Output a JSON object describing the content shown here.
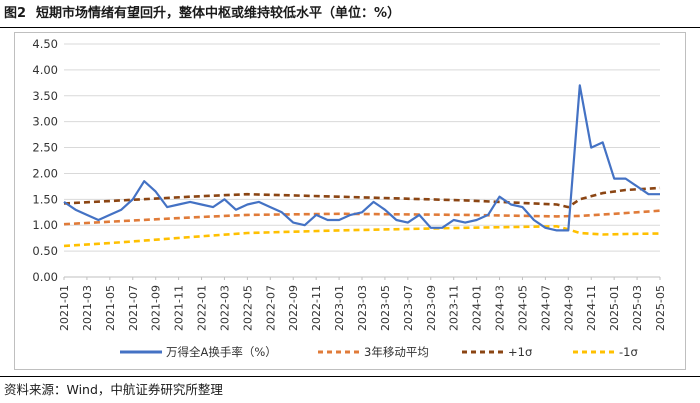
{
  "figure": {
    "number": "图2",
    "title": "短期市场情绪有望回升，整体中枢或维持较低水平（单位：%）"
  },
  "source": "资料来源：Wind，中航证券研究所整理",
  "colors": {
    "turnover": "#4472C4",
    "ma3y": "#E07B39",
    "plus1": "#8B4513",
    "minus1": "#FFC000"
  },
  "chart_data": {
    "type": "line",
    "x_start": "2021-01",
    "x_end": "2025-05",
    "ylim": [
      0.0,
      4.5
    ],
    "yticks": [
      "0.00",
      "0.50",
      "1.00",
      "1.50",
      "2.00",
      "2.50",
      "3.00",
      "3.50",
      "4.00",
      "4.50"
    ],
    "xticks": [
      "2021-01",
      "2021-03",
      "2021-05",
      "2021-07",
      "2021-09",
      "2021-11",
      "2022-01",
      "2022-03",
      "2022-05",
      "2022-07",
      "2022-09",
      "2022-11",
      "2023-01",
      "2023-03",
      "2023-05",
      "2023-07",
      "2023-09",
      "2023-11",
      "2024-01",
      "2024-03",
      "2024-05",
      "2024-07",
      "2024-09",
      "2024-11",
      "2025-01",
      "2025-03",
      "2025-05"
    ],
    "grid": true,
    "legend_position": "bottom",
    "series": [
      {
        "name": "万得全A换手率（%）",
        "style": "solid",
        "x": [
          "2021-01",
          "2021-02",
          "2021-03",
          "2021-04",
          "2021-05",
          "2021-06",
          "2021-07",
          "2021-08",
          "2021-09",
          "2021-10",
          "2021-11",
          "2021-12",
          "2022-01",
          "2022-02",
          "2022-03",
          "2022-04",
          "2022-05",
          "2022-06",
          "2022-07",
          "2022-08",
          "2022-09",
          "2022-10",
          "2022-11",
          "2022-12",
          "2023-01",
          "2023-02",
          "2023-03",
          "2023-04",
          "2023-05",
          "2023-06",
          "2023-07",
          "2023-08",
          "2023-09",
          "2023-10",
          "2023-11",
          "2023-12",
          "2024-01",
          "2024-02",
          "2024-03",
          "2024-04",
          "2024-05",
          "2024-06",
          "2024-07",
          "2024-08",
          "2024-09",
          "2024-10",
          "2024-11",
          "2024-12",
          "2025-01",
          "2025-02",
          "2025-03",
          "2025-04",
          "2025-05"
        ],
        "values": [
          1.45,
          1.3,
          1.2,
          1.1,
          1.2,
          1.3,
          1.5,
          1.85,
          1.65,
          1.35,
          1.4,
          1.45,
          1.4,
          1.35,
          1.5,
          1.3,
          1.4,
          1.45,
          1.35,
          1.25,
          1.05,
          1.0,
          1.2,
          1.1,
          1.1,
          1.2,
          1.25,
          1.45,
          1.3,
          1.1,
          1.05,
          1.2,
          0.95,
          0.95,
          1.1,
          1.05,
          1.1,
          1.2,
          1.55,
          1.4,
          1.35,
          1.1,
          0.95,
          0.9,
          0.9,
          3.7,
          2.5,
          2.6,
          1.9,
          1.9,
          1.75,
          1.6,
          1.6
        ]
      },
      {
        "name": "3年移动平均",
        "style": "dashed",
        "x": [
          "2021-01",
          "2021-06",
          "2021-12",
          "2022-05",
          "2023-01",
          "2023-12",
          "2024-08",
          "2024-10",
          "2025-01",
          "2025-05"
        ],
        "values": [
          1.02,
          1.08,
          1.15,
          1.2,
          1.22,
          1.2,
          1.17,
          1.18,
          1.22,
          1.28
        ]
      },
      {
        "name": "+1σ",
        "style": "dashed",
        "x": [
          "2021-01",
          "2021-06",
          "2021-12",
          "2022-05",
          "2023-01",
          "2023-12",
          "2024-08",
          "2024-09",
          "2024-10",
          "2024-12",
          "2025-02",
          "2025-05"
        ],
        "values": [
          1.42,
          1.48,
          1.55,
          1.6,
          1.55,
          1.48,
          1.4,
          1.35,
          1.5,
          1.62,
          1.68,
          1.72
        ]
      },
      {
        "name": "-1σ",
        "style": "dashed",
        "x": [
          "2021-01",
          "2021-06",
          "2021-12",
          "2022-05",
          "2023-01",
          "2023-12",
          "2024-08",
          "2024-09",
          "2024-10",
          "2024-12",
          "2025-02",
          "2025-05"
        ],
        "values": [
          0.6,
          0.67,
          0.77,
          0.85,
          0.9,
          0.95,
          0.98,
          0.92,
          0.85,
          0.82,
          0.83,
          0.84
        ]
      }
    ]
  }
}
